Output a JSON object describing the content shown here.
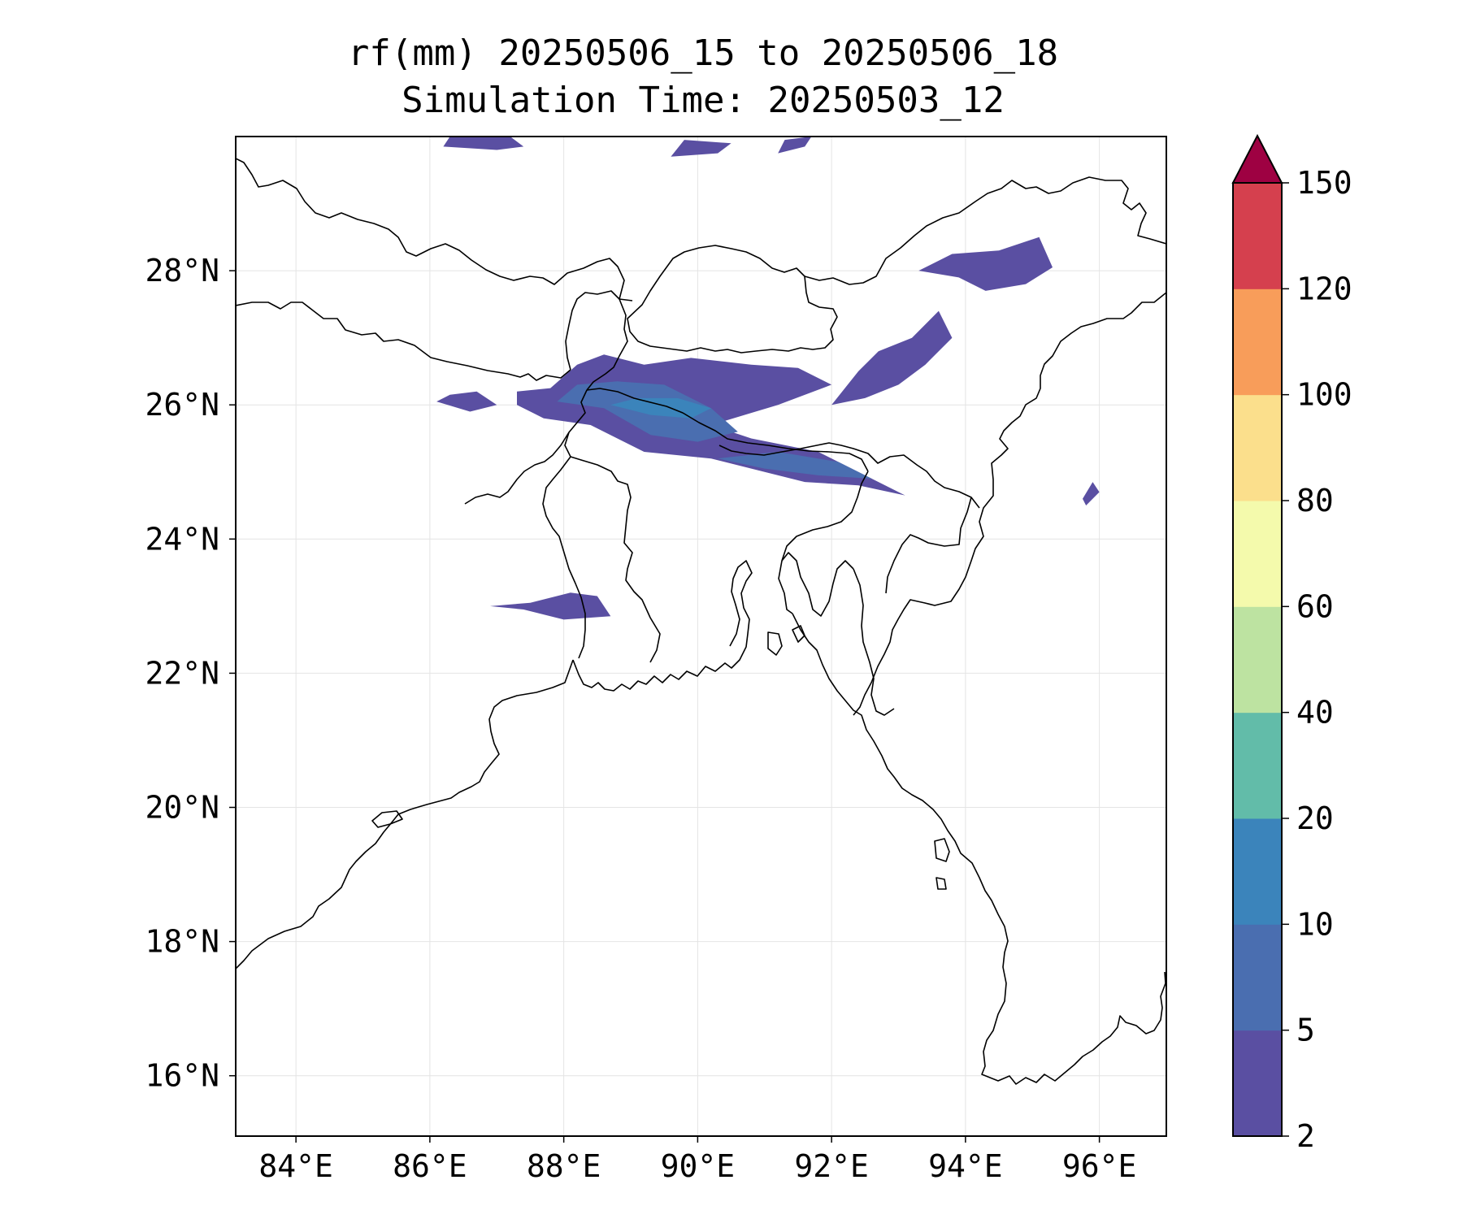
{
  "title": {
    "line1": "rf(mm) 20250506_15 to 20250506_18",
    "line2": "Simulation Time: 20250503_12"
  },
  "map": {
    "lon_range": [
      83.1,
      97.0
    ],
    "lat_range": [
      15.1,
      30.0
    ],
    "lon_ticks": [
      84,
      86,
      88,
      90,
      92,
      94,
      96
    ],
    "lon_tick_labels": [
      "84°E",
      "86°E",
      "88°E",
      "90°E",
      "92°E",
      "94°E",
      "96°E"
    ],
    "lat_ticks": [
      16,
      18,
      20,
      22,
      24,
      26,
      28
    ],
    "lat_tick_labels": [
      "16°N",
      "18°N",
      "20°N",
      "22°N",
      "24°N",
      "26°N",
      "28°N"
    ],
    "gridlines": true,
    "coastline_color": "#000000"
  },
  "colorbar": {
    "levels": [
      2,
      5,
      10,
      20,
      40,
      60,
      80,
      100,
      120,
      150
    ],
    "tick_labels": [
      "2",
      "5",
      "10",
      "20",
      "40",
      "60",
      "80",
      "100",
      "120",
      "150"
    ],
    "colors": [
      "#5a4fa2",
      "#4a6eb0",
      "#3b84bb",
      "#62bca9",
      "#bde3a1",
      "#f4faac",
      "#fbdf8c",
      "#f89d5a",
      "#d5404e",
      "#9e0142"
    ],
    "extend": "max"
  },
  "rain_patches": [
    {
      "name": "main-band",
      "level": 1,
      "points": [
        [
          87.3,
          26.0
        ],
        [
          87.7,
          25.8
        ],
        [
          88.4,
          25.7
        ],
        [
          89.2,
          25.3
        ],
        [
          90.2,
          25.2
        ],
        [
          91.0,
          25.0
        ],
        [
          91.6,
          24.85
        ],
        [
          92.4,
          24.8
        ],
        [
          93.1,
          24.65
        ],
        [
          92.6,
          24.9
        ],
        [
          91.8,
          25.3
        ],
        [
          90.8,
          25.5
        ],
        [
          90.2,
          25.7
        ],
        [
          91.2,
          26.0
        ],
        [
          92.0,
          26.3
        ],
        [
          91.5,
          26.55
        ],
        [
          90.8,
          26.6
        ],
        [
          89.9,
          26.7
        ],
        [
          89.2,
          26.6
        ],
        [
          88.6,
          26.75
        ],
        [
          88.2,
          26.6
        ],
        [
          87.8,
          26.25
        ],
        [
          87.3,
          26.2
        ]
      ]
    },
    {
      "name": "main-band-inner",
      "level": 2,
      "points": [
        [
          87.9,
          26.05
        ],
        [
          88.6,
          25.95
        ],
        [
          89.3,
          25.55
        ],
        [
          90.0,
          25.45
        ],
        [
          90.6,
          25.6
        ],
        [
          90.2,
          25.95
        ],
        [
          89.5,
          26.3
        ],
        [
          88.8,
          26.35
        ],
        [
          88.2,
          26.3
        ]
      ]
    },
    {
      "name": "main-core",
      "level": 3,
      "points": [
        [
          88.7,
          26.0
        ],
        [
          89.3,
          25.85
        ],
        [
          89.9,
          25.8
        ],
        [
          90.2,
          25.95
        ],
        [
          89.7,
          26.1
        ],
        [
          89.1,
          26.1
        ]
      ]
    },
    {
      "name": "sylhet-band",
      "level": 2,
      "points": [
        [
          90.3,
          25.2
        ],
        [
          91.0,
          25.05
        ],
        [
          91.8,
          24.95
        ],
        [
          92.6,
          24.9
        ],
        [
          92.1,
          25.15
        ],
        [
          91.2,
          25.3
        ]
      ]
    },
    {
      "name": "assam-patch",
      "level": 1,
      "points": [
        [
          92.0,
          26.0
        ],
        [
          92.4,
          26.5
        ],
        [
          92.7,
          26.8
        ],
        [
          93.2,
          27.0
        ],
        [
          93.6,
          27.4
        ],
        [
          93.8,
          27.0
        ],
        [
          93.4,
          26.6
        ],
        [
          93.0,
          26.3
        ],
        [
          92.5,
          26.1
        ]
      ]
    },
    {
      "name": "arunachal-patch",
      "level": 1,
      "points": [
        [
          93.3,
          28.0
        ],
        [
          93.8,
          28.25
        ],
        [
          94.5,
          28.3
        ],
        [
          95.1,
          28.5
        ],
        [
          95.3,
          28.05
        ],
        [
          94.9,
          27.8
        ],
        [
          94.3,
          27.7
        ],
        [
          93.9,
          27.9
        ]
      ]
    },
    {
      "name": "kolkata-patch",
      "level": 1,
      "points": [
        [
          86.9,
          23.0
        ],
        [
          87.4,
          22.95
        ],
        [
          88.0,
          22.8
        ],
        [
          88.7,
          22.85
        ],
        [
          88.5,
          23.15
        ],
        [
          88.1,
          23.2
        ],
        [
          87.5,
          23.05
        ]
      ]
    },
    {
      "name": "tibet-patch-1",
      "level": 1,
      "points": [
        [
          86.2,
          29.85
        ],
        [
          87.0,
          29.8
        ],
        [
          87.4,
          29.85
        ],
        [
          87.2,
          30.0
        ],
        [
          86.3,
          30.0
        ]
      ]
    },
    {
      "name": "tibet-patch-2",
      "level": 1,
      "points": [
        [
          89.6,
          29.7
        ],
        [
          90.3,
          29.75
        ],
        [
          90.5,
          29.9
        ],
        [
          89.8,
          29.95
        ]
      ]
    },
    {
      "name": "tibet-patch-3",
      "level": 1,
      "points": [
        [
          91.2,
          29.75
        ],
        [
          91.6,
          29.85
        ],
        [
          91.7,
          30.0
        ],
        [
          91.3,
          29.95
        ]
      ]
    },
    {
      "name": "nepal-east-patch",
      "level": 1,
      "points": [
        [
          86.1,
          26.05
        ],
        [
          86.6,
          25.9
        ],
        [
          87.0,
          26.0
        ],
        [
          86.7,
          26.2
        ],
        [
          86.3,
          26.15
        ]
      ]
    },
    {
      "name": "myanmar-patch",
      "level": 1,
      "points": [
        [
          95.8,
          24.5
        ],
        [
          96.0,
          24.7
        ],
        [
          95.9,
          24.85
        ],
        [
          95.75,
          24.6
        ]
      ]
    }
  ]
}
